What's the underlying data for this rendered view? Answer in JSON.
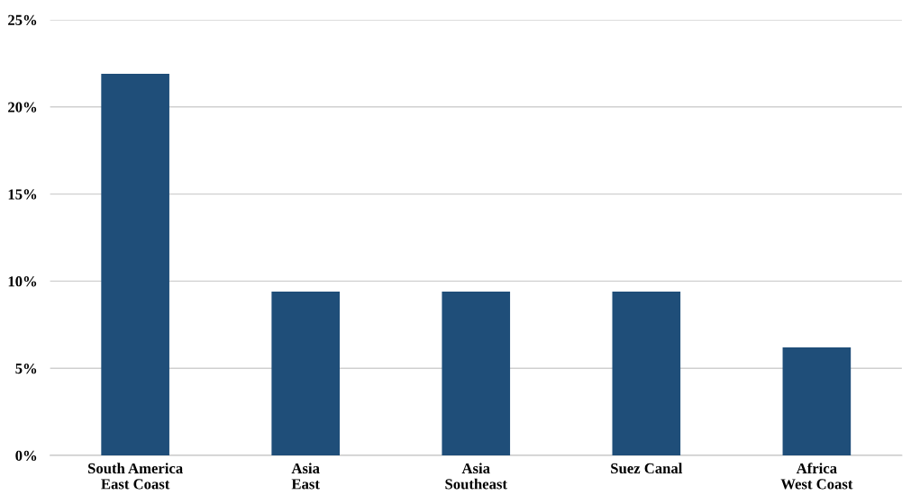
{
  "chart_data": {
    "type": "bar",
    "categories": [
      "South America\nEast Coast",
      "Asia\nEast",
      "Asia\nSoutheast",
      "Suez Canal",
      "Africa\nWest Coast"
    ],
    "values": [
      21.9,
      9.4,
      9.4,
      9.4,
      6.2
    ],
    "color": "#1f4e79",
    "ylim": [
      0,
      25
    ],
    "yticks": [
      {
        "value": 0,
        "label": "0%"
      },
      {
        "value": 5,
        "label": "5%"
      },
      {
        "value": 10,
        "label": "10%"
      },
      {
        "value": 15,
        "label": "15%"
      },
      {
        "value": 20,
        "label": "20%"
      },
      {
        "value": 25,
        "label": "25%"
      }
    ],
    "grid": "y"
  }
}
